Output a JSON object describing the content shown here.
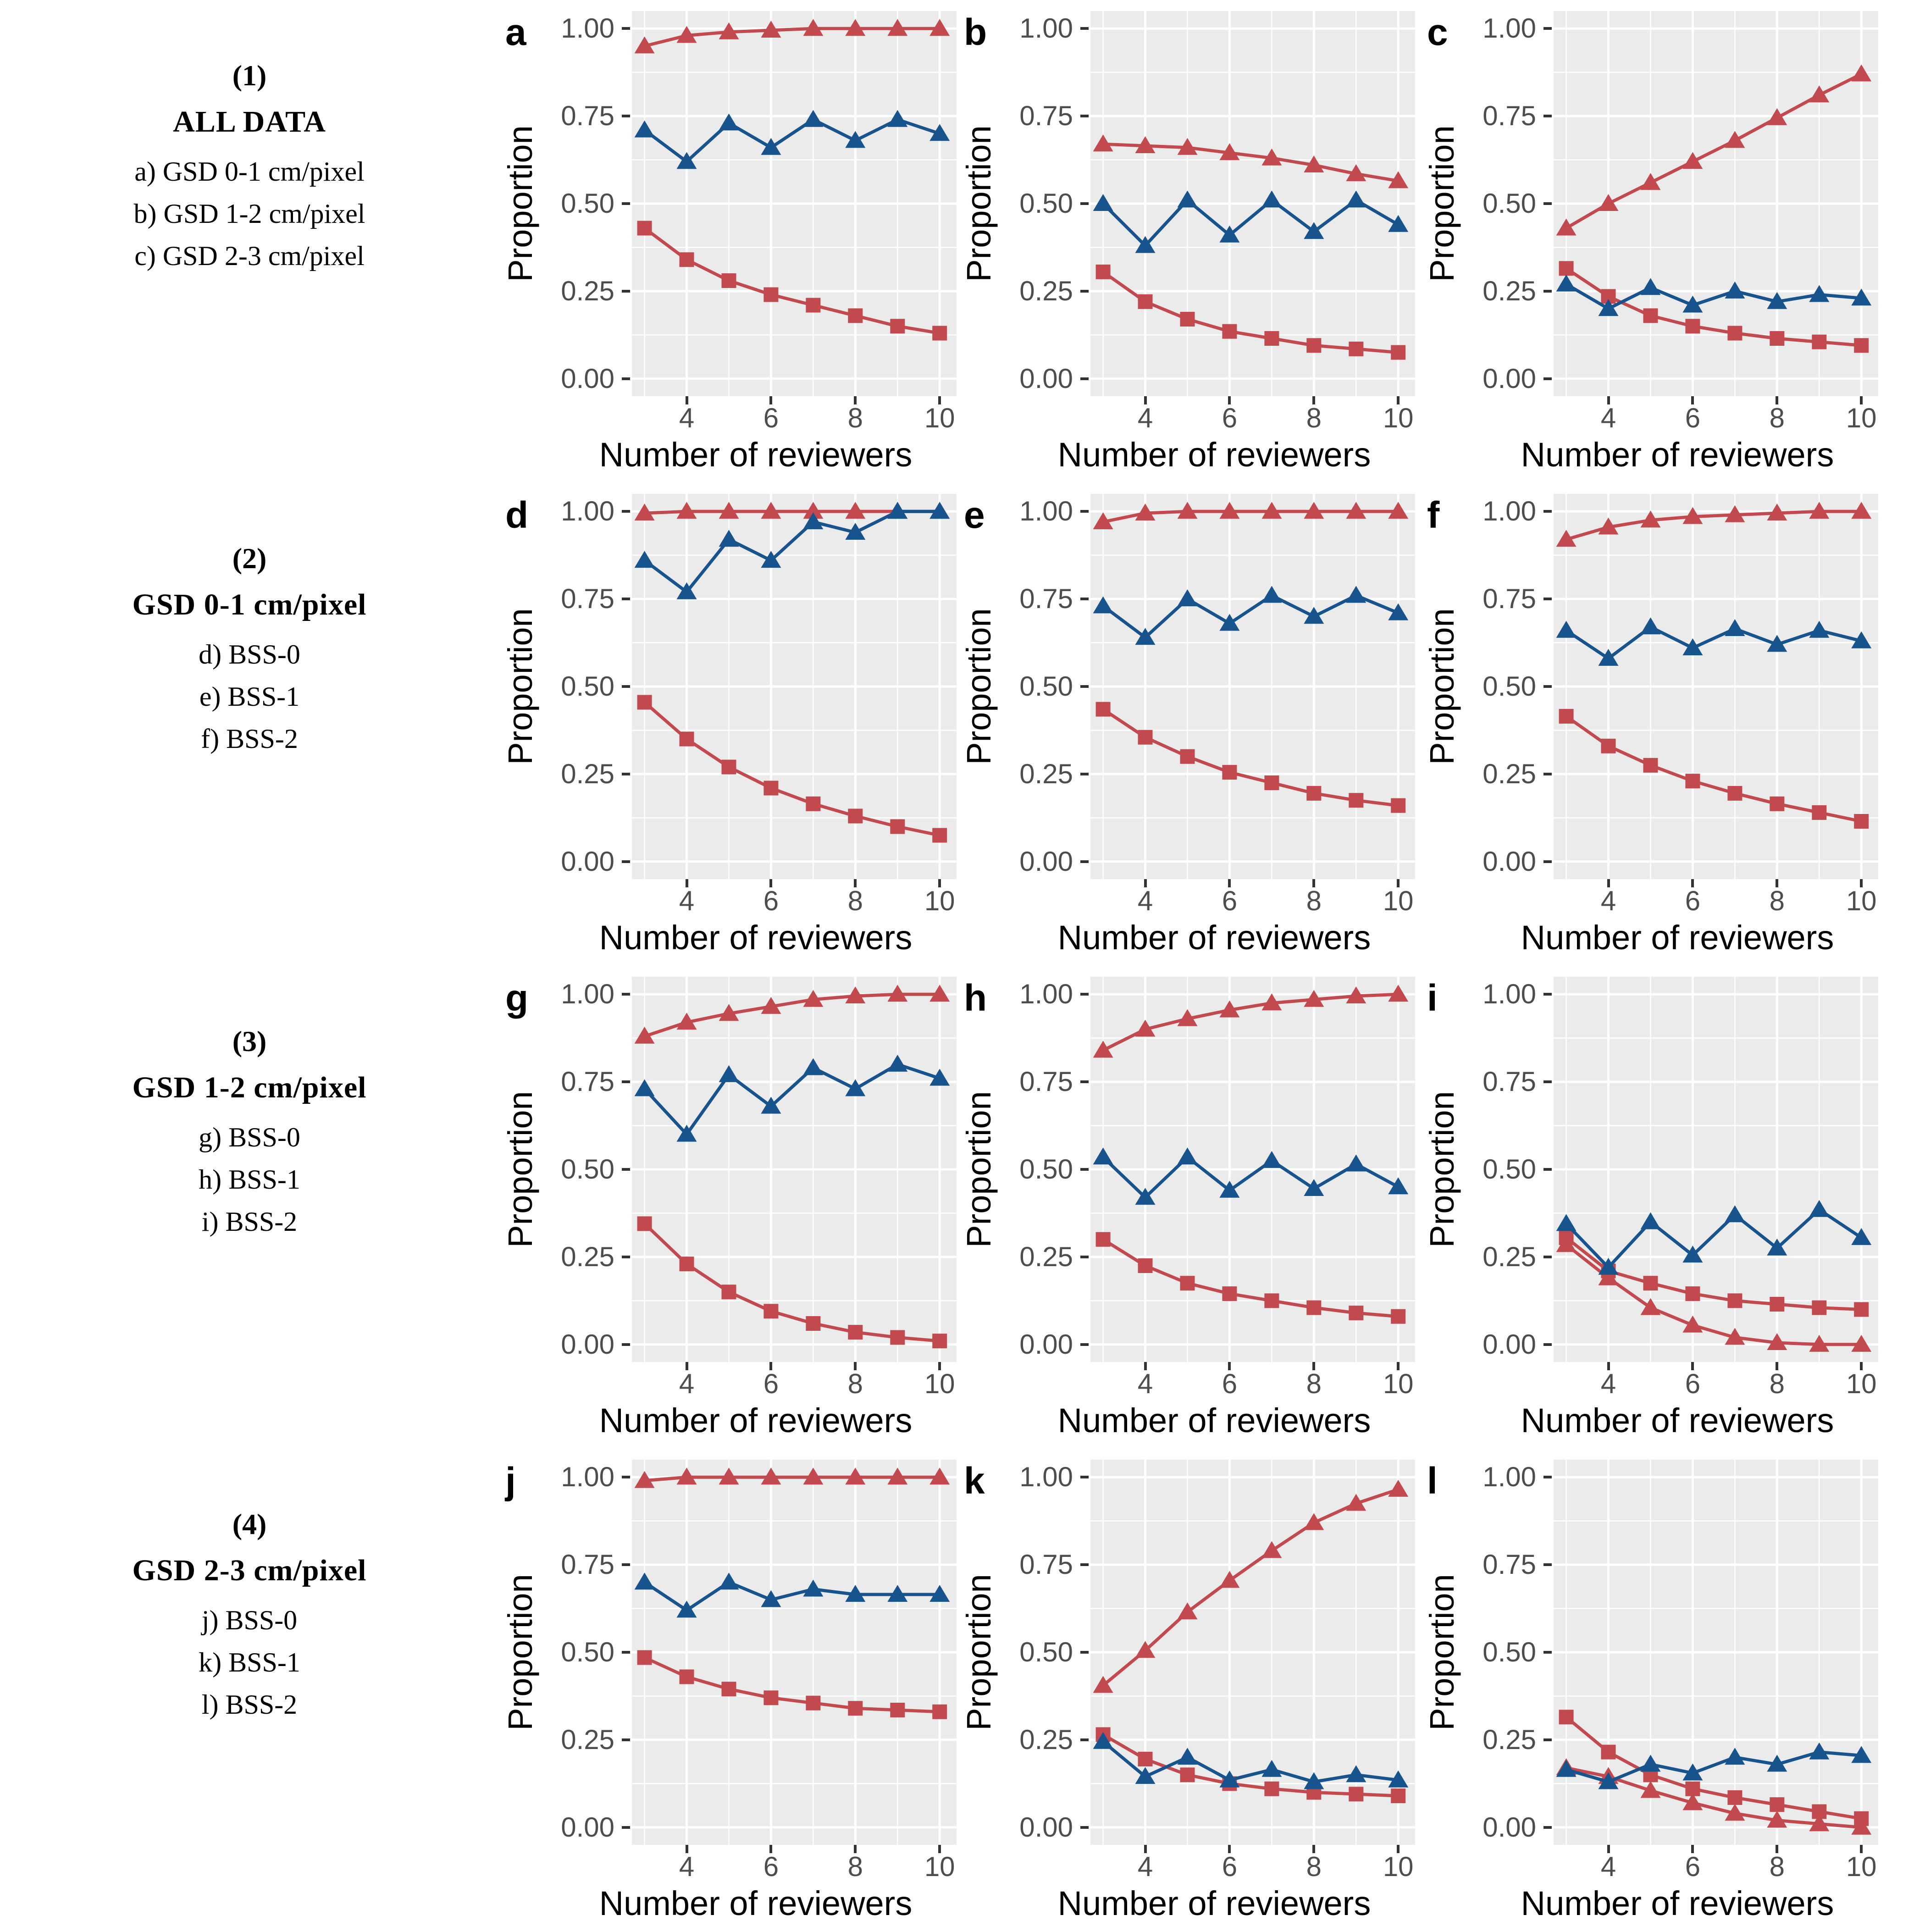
{
  "figure": {
    "row_groups": [
      {
        "number": "(1)",
        "title": "ALL DATA",
        "items": [
          "a) GSD 0-1 cm/pixel",
          "b) GSD 1-2 cm/pixel",
          "c) GSD 2-3 cm/pixel"
        ]
      },
      {
        "number": "(2)",
        "title": "GSD 0-1 cm/pixel",
        "items": [
          "d) BSS-0",
          "e) BSS-1",
          "f) BSS-2"
        ]
      },
      {
        "number": "(3)",
        "title": "GSD 1-2 cm/pixel",
        "items": [
          "g) BSS-0",
          "h) BSS-1",
          "i) BSS-2"
        ]
      },
      {
        "number": "(4)",
        "title": "GSD 2-3 cm/pixel",
        "items": [
          "j) BSS-0",
          "k) BSS-1",
          "l) BSS-2"
        ]
      }
    ]
  },
  "colors": {
    "red": "#C24A4F",
    "blue": "#17538D",
    "panel_bg": "#EBEBEB",
    "grid": "#FFFFFF",
    "tick_text": "#4D4D4D",
    "tick_mark": "#333333",
    "axis_text": "#000000"
  },
  "chart_data": {
    "type": "line",
    "xlabel": "Number of reviewers",
    "ylabel": "Proportion",
    "x": [
      3,
      4,
      5,
      6,
      7,
      8,
      9,
      10
    ],
    "x_ticks": [
      4,
      6,
      8,
      10
    ],
    "x_minor_gridlines": [
      3,
      5,
      7,
      9
    ],
    "y_ticks": [
      0,
      0.25,
      0.5,
      0.75,
      1
    ],
    "y_tick_labels": [
      "0.00",
      "0.25",
      "0.50",
      "0.75",
      "1.00"
    ],
    "y_minor_gridlines": [
      0.125,
      0.375,
      0.625,
      0.875
    ],
    "x_range_padded": [
      2.7,
      10.4
    ],
    "y_range_padded": [
      -0.05,
      1.05
    ],
    "grid": "on",
    "legend": "none",
    "panels": [
      {
        "letter": "a",
        "series": [
          {
            "id": "red-triangle",
            "color": "red",
            "marker": "triangle",
            "values": [
              0.95,
              0.98,
              0.99,
              0.995,
              1.0,
              1.0,
              1.0,
              1.0
            ]
          },
          {
            "id": "red-square",
            "color": "red",
            "marker": "square",
            "values": [
              0.43,
              0.34,
              0.28,
              0.24,
              0.21,
              0.18,
              0.15,
              0.13
            ]
          },
          {
            "id": "blue-triangle",
            "color": "blue",
            "marker": "triangle",
            "values": [
              0.71,
              0.62,
              0.73,
              0.66,
              0.74,
              0.68,
              0.74,
              0.7
            ]
          }
        ]
      },
      {
        "letter": "b",
        "series": [
          {
            "id": "red-triangle",
            "color": "red",
            "marker": "triangle",
            "values": [
              0.67,
              0.665,
              0.66,
              0.645,
              0.63,
              0.61,
              0.585,
              0.565
            ]
          },
          {
            "id": "red-square",
            "color": "red",
            "marker": "square",
            "values": [
              0.305,
              0.22,
              0.17,
              0.135,
              0.115,
              0.095,
              0.085,
              0.075
            ]
          },
          {
            "id": "blue-triangle",
            "color": "blue",
            "marker": "triangle",
            "values": [
              0.5,
              0.38,
              0.51,
              0.41,
              0.51,
              0.42,
              0.51,
              0.44
            ]
          }
        ]
      },
      {
        "letter": "c",
        "series": [
          {
            "id": "red-triangle",
            "color": "red",
            "marker": "triangle",
            "values": [
              0.43,
              0.5,
              0.56,
              0.62,
              0.68,
              0.745,
              0.81,
              0.87
            ]
          },
          {
            "id": "red-square",
            "color": "red",
            "marker": "square",
            "values": [
              0.315,
              0.235,
              0.18,
              0.15,
              0.13,
              0.115,
              0.105,
              0.095
            ]
          },
          {
            "id": "blue-triangle",
            "color": "blue",
            "marker": "triangle",
            "values": [
              0.27,
              0.2,
              0.26,
              0.21,
              0.25,
              0.22,
              0.24,
              0.23
            ]
          }
        ]
      },
      {
        "letter": "d",
        "series": [
          {
            "id": "red-triangle",
            "color": "red",
            "marker": "triangle",
            "values": [
              0.995,
              1.0,
              1.0,
              1.0,
              1.0,
              1.0,
              1.0,
              1.0
            ]
          },
          {
            "id": "red-square",
            "color": "red",
            "marker": "square",
            "values": [
              0.455,
              0.35,
              0.27,
              0.21,
              0.165,
              0.13,
              0.1,
              0.075
            ]
          },
          {
            "id": "blue-triangle",
            "color": "blue",
            "marker": "triangle",
            "values": [
              0.86,
              0.77,
              0.92,
              0.86,
              0.97,
              0.94,
              1.0,
              1.0
            ]
          }
        ]
      },
      {
        "letter": "e",
        "series": [
          {
            "id": "red-triangle",
            "color": "red",
            "marker": "triangle",
            "values": [
              0.97,
              0.995,
              1.0,
              1.0,
              1.0,
              1.0,
              1.0,
              1.0
            ]
          },
          {
            "id": "red-square",
            "color": "red",
            "marker": "square",
            "values": [
              0.435,
              0.355,
              0.3,
              0.255,
              0.225,
              0.195,
              0.175,
              0.16
            ]
          },
          {
            "id": "blue-triangle",
            "color": "blue",
            "marker": "triangle",
            "values": [
              0.73,
              0.64,
              0.75,
              0.68,
              0.76,
              0.7,
              0.76,
              0.71
            ]
          }
        ]
      },
      {
        "letter": "f",
        "series": [
          {
            "id": "red-triangle",
            "color": "red",
            "marker": "triangle",
            "values": [
              0.92,
              0.955,
              0.975,
              0.985,
              0.99,
              0.995,
              1.0,
              1.0
            ]
          },
          {
            "id": "red-square",
            "color": "red",
            "marker": "square",
            "values": [
              0.415,
              0.33,
              0.275,
              0.23,
              0.195,
              0.165,
              0.14,
              0.115
            ]
          },
          {
            "id": "blue-triangle",
            "color": "blue",
            "marker": "triangle",
            "values": [
              0.66,
              0.58,
              0.67,
              0.61,
              0.665,
              0.62,
              0.66,
              0.63
            ]
          }
        ]
      },
      {
        "letter": "g",
        "series": [
          {
            "id": "red-triangle",
            "color": "red",
            "marker": "triangle",
            "values": [
              0.88,
              0.92,
              0.945,
              0.965,
              0.985,
              0.995,
              1.0,
              1.0
            ]
          },
          {
            "id": "red-square",
            "color": "red",
            "marker": "square",
            "values": [
              0.345,
              0.23,
              0.15,
              0.095,
              0.06,
              0.035,
              0.02,
              0.01
            ]
          },
          {
            "id": "blue-triangle",
            "color": "blue",
            "marker": "triangle",
            "values": [
              0.73,
              0.6,
              0.77,
              0.68,
              0.79,
              0.73,
              0.8,
              0.76
            ]
          }
        ]
      },
      {
        "letter": "h",
        "series": [
          {
            "id": "red-triangle",
            "color": "red",
            "marker": "triangle",
            "values": [
              0.84,
              0.9,
              0.93,
              0.955,
              0.975,
              0.985,
              0.995,
              1.0
            ]
          },
          {
            "id": "red-square",
            "color": "red",
            "marker": "square",
            "values": [
              0.3,
              0.225,
              0.175,
              0.145,
              0.125,
              0.105,
              0.09,
              0.08
            ]
          },
          {
            "id": "blue-triangle",
            "color": "blue",
            "marker": "triangle",
            "values": [
              0.535,
              0.42,
              0.535,
              0.44,
              0.525,
              0.445,
              0.515,
              0.45
            ]
          }
        ]
      },
      {
        "letter": "i",
        "series": [
          {
            "id": "red-triangle",
            "color": "red",
            "marker": "triangle",
            "values": [
              0.285,
              0.19,
              0.105,
              0.055,
              0.02,
              0.005,
              0.0,
              0.0
            ]
          },
          {
            "id": "red-square",
            "color": "red",
            "marker": "square",
            "values": [
              0.305,
              0.21,
              0.175,
              0.145,
              0.125,
              0.115,
              0.105,
              0.1
            ]
          },
          {
            "id": "blue-triangle",
            "color": "blue",
            "marker": "triangle",
            "values": [
              0.345,
              0.22,
              0.35,
              0.255,
              0.37,
              0.275,
              0.385,
              0.305
            ]
          }
        ]
      },
      {
        "letter": "j",
        "series": [
          {
            "id": "red-triangle",
            "color": "red",
            "marker": "triangle",
            "values": [
              0.99,
              1.0,
              1.0,
              1.0,
              1.0,
              1.0,
              1.0,
              1.0
            ]
          },
          {
            "id": "red-square",
            "color": "red",
            "marker": "square",
            "values": [
              0.485,
              0.43,
              0.395,
              0.37,
              0.355,
              0.34,
              0.335,
              0.33
            ]
          },
          {
            "id": "blue-triangle",
            "color": "blue",
            "marker": "triangle",
            "values": [
              0.7,
              0.62,
              0.7,
              0.65,
              0.68,
              0.665,
              0.665,
              0.665
            ]
          }
        ]
      },
      {
        "letter": "k",
        "series": [
          {
            "id": "red-triangle",
            "color": "red",
            "marker": "triangle",
            "values": [
              0.405,
              0.505,
              0.615,
              0.705,
              0.79,
              0.87,
              0.925,
              0.965
            ]
          },
          {
            "id": "red-square",
            "color": "red",
            "marker": "square",
            "values": [
              0.265,
              0.195,
              0.15,
              0.125,
              0.11,
              0.1,
              0.095,
              0.09
            ]
          },
          {
            "id": "blue-triangle",
            "color": "blue",
            "marker": "triangle",
            "values": [
              0.245,
              0.145,
              0.2,
              0.135,
              0.165,
              0.13,
              0.15,
              0.135
            ]
          }
        ]
      },
      {
        "letter": "l",
        "series": [
          {
            "id": "red-triangle",
            "color": "red",
            "marker": "triangle",
            "values": [
              0.17,
              0.145,
              0.105,
              0.07,
              0.04,
              0.02,
              0.01,
              0.0
            ]
          },
          {
            "id": "red-square",
            "color": "red",
            "marker": "square",
            "values": [
              0.315,
              0.215,
              0.15,
              0.11,
              0.085,
              0.065,
              0.045,
              0.025
            ]
          },
          {
            "id": "blue-triangle",
            "color": "blue",
            "marker": "triangle",
            "values": [
              0.165,
              0.13,
              0.18,
              0.155,
              0.2,
              0.18,
              0.215,
              0.205
            ]
          }
        ]
      }
    ]
  }
}
